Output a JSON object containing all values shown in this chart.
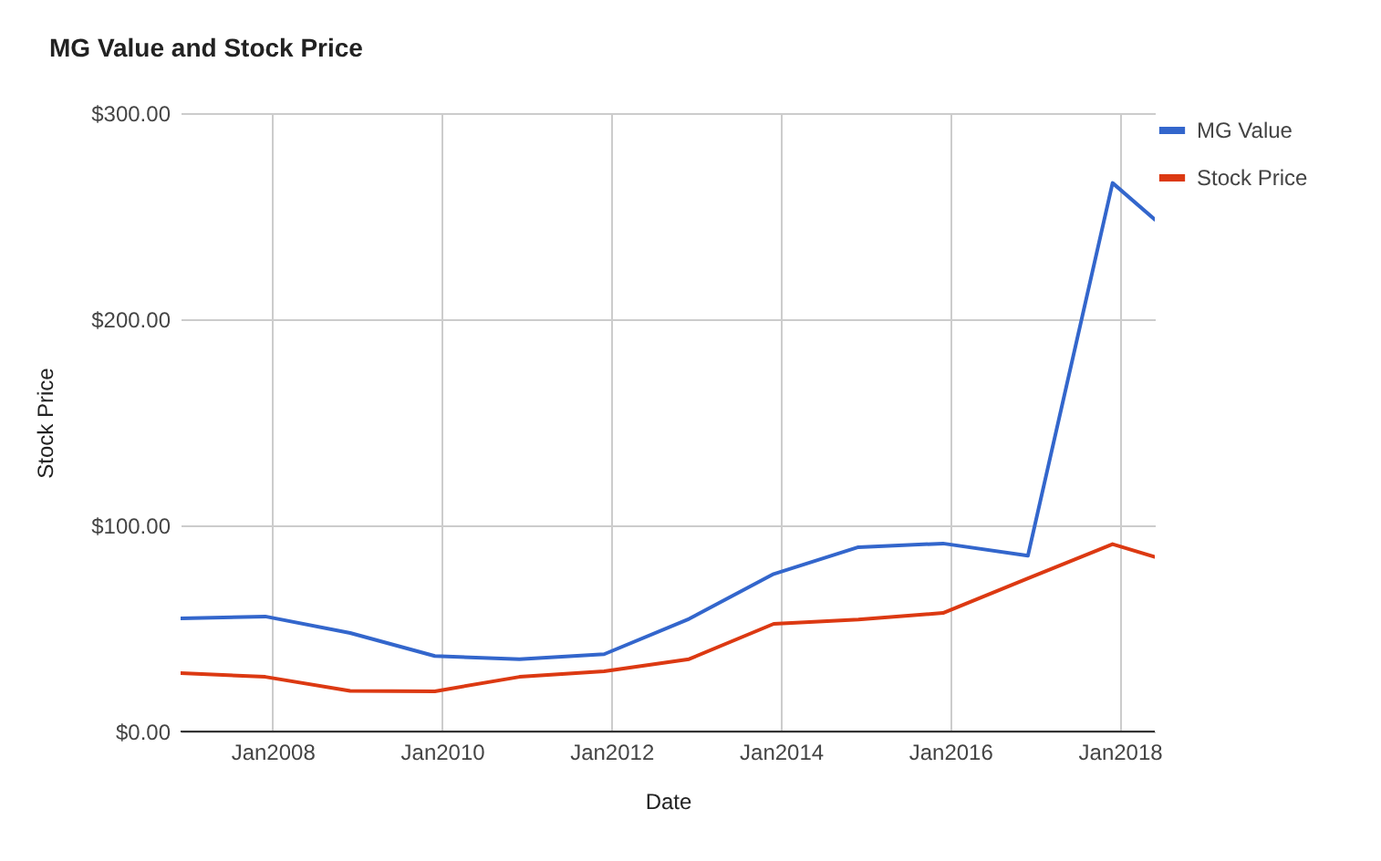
{
  "chart_data": {
    "type": "line",
    "title": "MG Value and Stock Price",
    "xlabel": "Date",
    "ylabel": "Stock Price",
    "x": [
      "2006-12",
      "2007-12",
      "2008-12",
      "2009-12",
      "2010-12",
      "2011-12",
      "2012-12",
      "2013-12",
      "2014-12",
      "2015-12",
      "2016-12",
      "2017-12",
      "2018-06"
    ],
    "series": [
      {
        "name": "MG Value",
        "color": "#3366cc",
        "values": [
          54.9,
          55.8,
          47.8,
          36.6,
          35.1,
          37.5,
          54.6,
          76.4,
          89.4,
          91.2,
          85.3,
          266.1,
          248.4
        ]
      },
      {
        "name": "Stock Price",
        "color": "#dc3912",
        "values": [
          28.3,
          26.5,
          19.7,
          19.5,
          26.5,
          29.2,
          35.1,
          52.2,
          54.3,
          57.5,
          74.3,
          90.9,
          84.7
        ]
      }
    ],
    "xlim": [
      "2006-12",
      "2018-06"
    ],
    "xticks": [
      {
        "value": "2008-01",
        "label": "Jan2008"
      },
      {
        "value": "2010-01",
        "label": "Jan2010"
      },
      {
        "value": "2012-01",
        "label": "Jan2012"
      },
      {
        "value": "2014-01",
        "label": "Jan2014"
      },
      {
        "value": "2016-01",
        "label": "Jan2016"
      },
      {
        "value": "2018-01",
        "label": "Jan2018"
      }
    ],
    "ylim": [
      0,
      300
    ],
    "yticks": [
      {
        "value": 0,
        "label": "$0.00"
      },
      {
        "value": 100,
        "label": "$100.00"
      },
      {
        "value": 200,
        "label": "$200.00"
      },
      {
        "value": 300,
        "label": "$300.00"
      }
    ],
    "grid": true,
    "legend": "top right"
  }
}
